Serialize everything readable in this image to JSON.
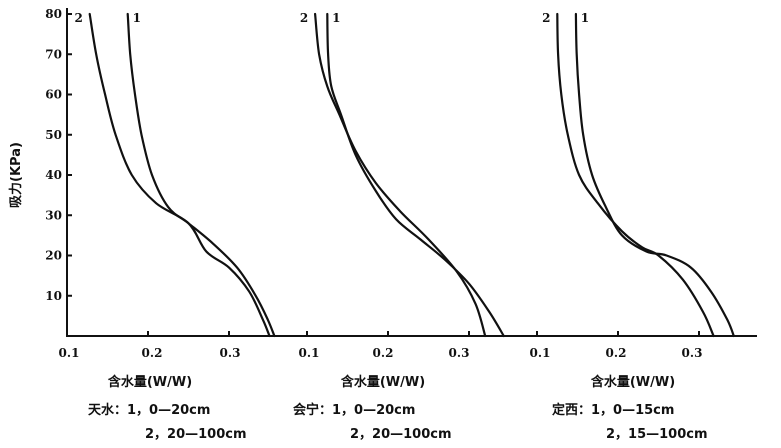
{
  "chart_data": {
    "type": "line",
    "ylabel": "吸力(KPa)",
    "y_ticks": [
      "10",
      "20",
      "30",
      "40",
      "50",
      "60",
      "70",
      "80"
    ],
    "ylim": [
      0,
      80
    ],
    "grid": false,
    "panels": [
      {
        "xlabel": "含水量(W/W)",
        "x_ticks": [
          "0.1",
          "0.2",
          "0.3"
        ],
        "xlim": [
          0.1,
          0.35
        ],
        "caption_line1": "天水：1，0—20cm",
        "caption_line2": "2，20—100cm",
        "series": [
          {
            "name": "1",
            "points": [
              [
                0.175,
                80
              ],
              [
                0.178,
                70
              ],
              [
                0.184,
                60
              ],
              [
                0.192,
                50
              ],
              [
                0.205,
                40
              ],
              [
                0.225,
                32
              ],
              [
                0.25,
                28
              ],
              [
                0.28,
                23
              ],
              [
                0.31,
                17
              ],
              [
                0.333,
                10
              ],
              [
                0.348,
                4
              ],
              [
                0.356,
                0
              ]
            ]
          },
          {
            "name": "2",
            "points": [
              [
                0.128,
                80
              ],
              [
                0.136,
                70
              ],
              [
                0.147,
                60
              ],
              [
                0.16,
                50
              ],
              [
                0.18,
                40
              ],
              [
                0.21,
                33
              ],
              [
                0.25,
                28
              ],
              [
                0.272,
                21
              ],
              [
                0.3,
                17
              ],
              [
                0.325,
                11
              ],
              [
                0.342,
                4
              ],
              [
                0.35,
                0
              ]
            ]
          }
        ]
      },
      {
        "xlabel": "含水量(W/W)",
        "x_ticks": [
          "0.1",
          "0.2",
          "0.3"
        ],
        "xlim": [
          0.1,
          0.35
        ],
        "caption_line1": "会宁：1，0—20cm",
        "caption_line2": "2，20—100cm",
        "series": [
          {
            "name": "1",
            "points": [
              [
                0.125,
                80
              ],
              [
                0.126,
                70
              ],
              [
                0.13,
                62
              ],
              [
                0.142,
                55
              ],
              [
                0.16,
                45
              ],
              [
                0.185,
                36
              ],
              [
                0.21,
                29
              ],
              [
                0.24,
                24
              ],
              [
                0.27,
                19
              ],
              [
                0.3,
                13
              ],
              [
                0.325,
                6
              ],
              [
                0.343,
                0
              ]
            ]
          },
          {
            "name": "2",
            "points": [
              [
                0.11,
                80
              ],
              [
                0.115,
                70
              ],
              [
                0.125,
                62
              ],
              [
                0.14,
                55
              ],
              [
                0.16,
                46
              ],
              [
                0.185,
                38
              ],
              [
                0.215,
                31
              ],
              [
                0.25,
                24
              ],
              [
                0.285,
                16
              ],
              [
                0.308,
                8
              ],
              [
                0.32,
                0
              ]
            ]
          }
        ]
      },
      {
        "xlabel": "含水量(W/W)",
        "x_ticks": [
          "0.1",
          "0.2",
          "0.3"
        ],
        "xlim": [
          0.1,
          0.35
        ],
        "caption_line1": "定西：1，0—15cm",
        "caption_line2": "2，15—100cm",
        "series": [
          {
            "name": "1",
            "points": [
              [
                0.148,
                80
              ],
              [
                0.149,
                70
              ],
              [
                0.152,
                60
              ],
              [
                0.157,
                50
              ],
              [
                0.168,
                40
              ],
              [
                0.185,
                32
              ],
              [
                0.205,
                25
              ],
              [
                0.235,
                21
              ],
              [
                0.26,
                20
              ],
              [
                0.29,
                17
              ],
              [
                0.315,
                11
              ],
              [
                0.335,
                4
              ],
              [
                0.343,
                0
              ]
            ]
          },
          {
            "name": "2",
            "points": [
              [
                0.125,
                80
              ],
              [
                0.126,
                70
              ],
              [
                0.13,
                60
              ],
              [
                0.138,
                50
              ],
              [
                0.152,
                40
              ],
              [
                0.175,
                33
              ],
              [
                0.205,
                26
              ],
              [
                0.23,
                22
              ],
              [
                0.25,
                20
              ],
              [
                0.28,
                14
              ],
              [
                0.305,
                6
              ],
              [
                0.318,
                0
              ]
            ]
          }
        ]
      }
    ]
  }
}
